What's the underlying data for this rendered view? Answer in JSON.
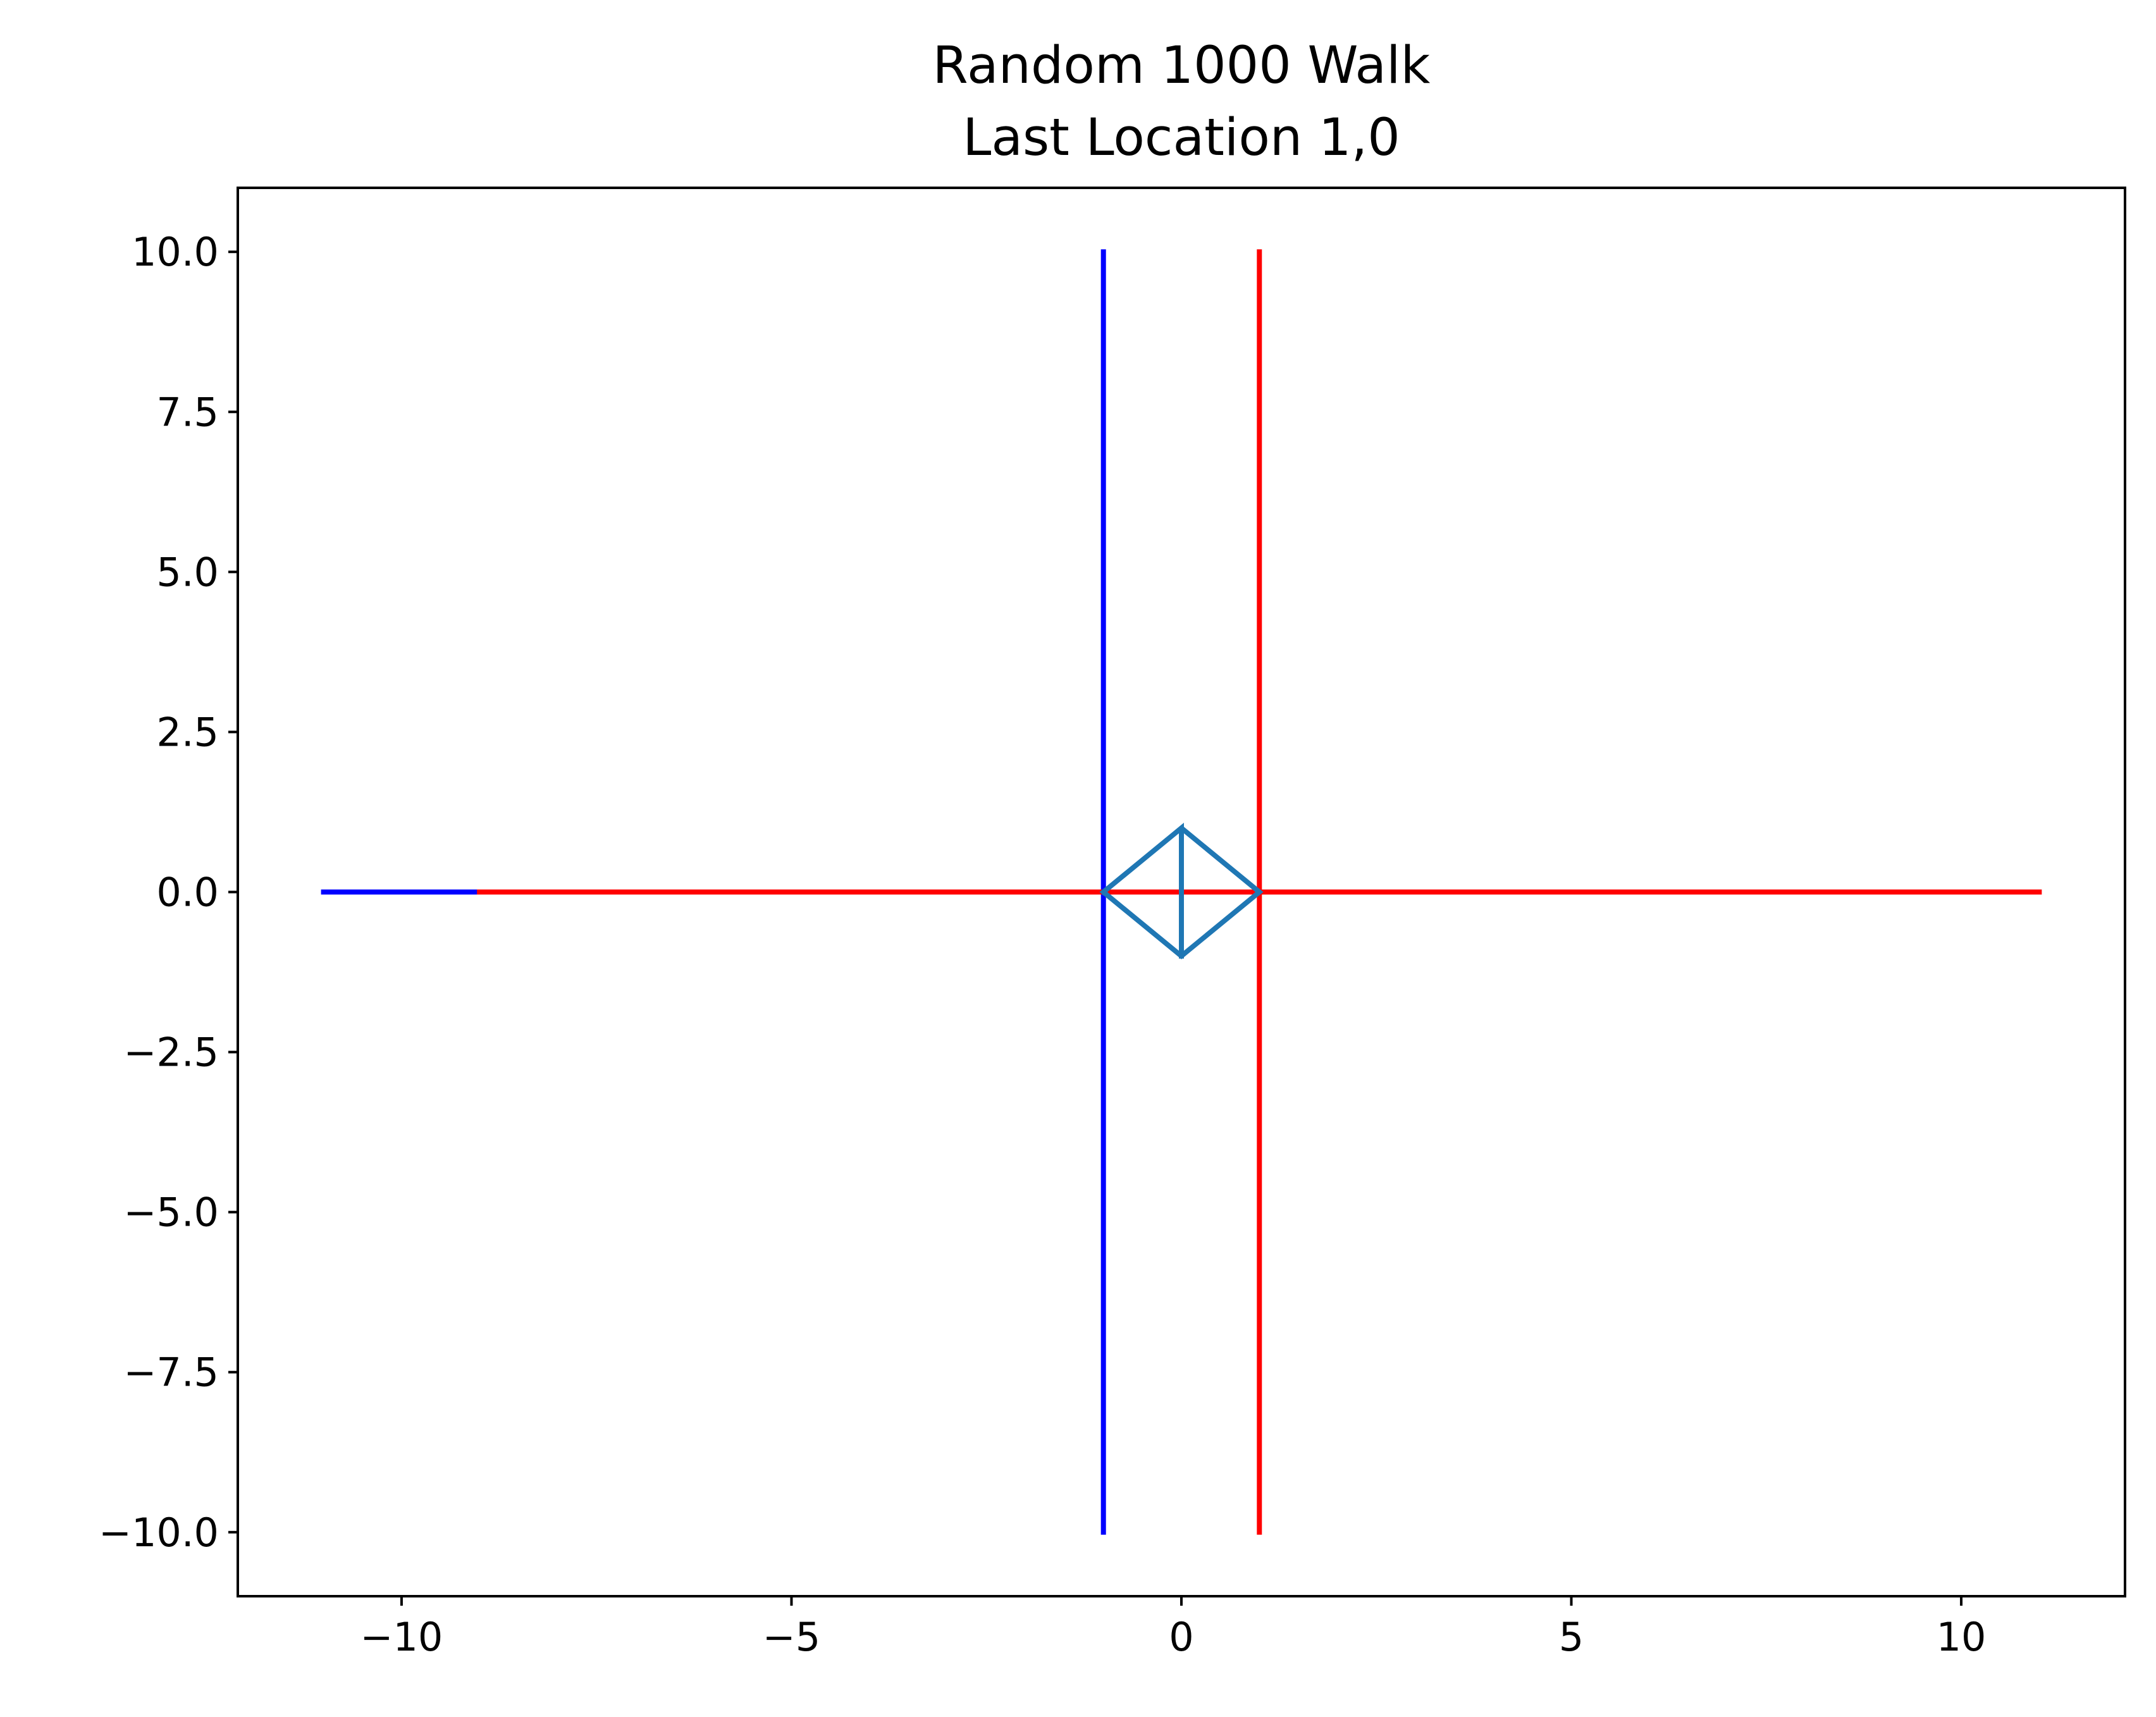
{
  "chart_data": {
    "type": "line",
    "title": "Random 1000 Walk",
    "subtitle": "Last Location 1,0",
    "xlabel": "",
    "ylabel": "",
    "xlim": [
      -12.1,
      12.1
    ],
    "ylim": [
      -11,
      11
    ],
    "grid": false,
    "x_ticks": [
      {
        "value": -10,
        "label": "−10"
      },
      {
        "value": -5,
        "label": "−5"
      },
      {
        "value": 0,
        "label": "0"
      },
      {
        "value": 5,
        "label": "5"
      },
      {
        "value": 10,
        "label": "10"
      }
    ],
    "y_ticks": [
      {
        "value": 10,
        "label": "10.0"
      },
      {
        "value": 7.5,
        "label": "7.5"
      },
      {
        "value": 5,
        "label": "5.0"
      },
      {
        "value": 2.5,
        "label": "2.5"
      },
      {
        "value": 0,
        "label": "0.0"
      },
      {
        "value": -2.5,
        "label": "−2.5"
      },
      {
        "value": -5,
        "label": "−5.0"
      },
      {
        "value": -7.5,
        "label": "−7.5"
      },
      {
        "value": -10,
        "label": "−10.0"
      }
    ],
    "series": [
      {
        "color": "#0000ff",
        "x": [
          -1,
          -1
        ],
        "y": [
          -10,
          10
        ]
      },
      {
        "color": "#0000ff",
        "x": [
          -11,
          -9
        ],
        "y": [
          0,
          0
        ]
      },
      {
        "color": "#ff0000",
        "x": [
          1,
          1
        ],
        "y": [
          -10,
          10
        ]
      },
      {
        "color": "#ff0000",
        "x": [
          -9,
          11
        ],
        "y": [
          0,
          0
        ]
      },
      {
        "color": "#1f77b4",
        "x": [
          -1,
          0,
          1,
          0,
          -1,
          0,
          0
        ],
        "y": [
          0,
          1,
          0,
          -1,
          0,
          1,
          -1
        ]
      }
    ]
  }
}
